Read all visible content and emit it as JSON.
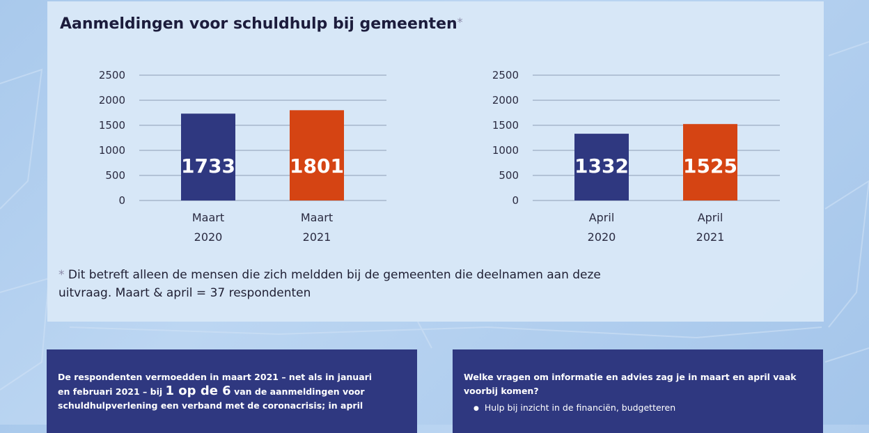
{
  "title": "Aanmeldingen voor schuldhulp bij gemeenten",
  "title_marker": "*",
  "footnote": {
    "marker": "*",
    "line1": "Dit betreft alleen de mensen die zich meldden bij de gemeenten die deelnamen aan deze",
    "line2": "uitvraag. Maart & april = 37 respondenten"
  },
  "colors": {
    "blue": "#2f3880",
    "orange": "#d54413",
    "axis_text": "#2a2a40",
    "grid": "#8d9db5"
  },
  "chart_data": [
    {
      "type": "bar",
      "categories": [
        [
          "Maart",
          "2020"
        ],
        [
          "Maart",
          "2021"
        ]
      ],
      "values": [
        1733,
        1801
      ],
      "labels": [
        "1733",
        "1801"
      ],
      "yticks": [
        "0",
        "500",
        "1000",
        "1500",
        "2000",
        "2500"
      ],
      "ylim": [
        0,
        2500
      ],
      "grid": true
    },
    {
      "type": "bar",
      "categories": [
        [
          "April",
          "2020"
        ],
        [
          "April",
          "2021"
        ]
      ],
      "values": [
        1332,
        1525
      ],
      "labels": [
        "1332",
        "1525"
      ],
      "yticks": [
        "0",
        "500",
        "1000",
        "1500",
        "2000",
        "2500"
      ],
      "ylim": [
        0,
        2500
      ],
      "grid": true
    }
  ],
  "box_left": {
    "line1": "De respondenten vermoedden in maart 2021 – net als in januari",
    "line2_pre": "en februari 2021 – bij ",
    "line2_big": "1 op de 6",
    "line2_post": " van de aanmeldingen voor",
    "line3": "schuldhulpverlening een verband met de coronacrisis; in april"
  },
  "box_right": {
    "question_line1": "Welke vragen om informatie en advies zag je in maart en april vaak",
    "question_line2": "voorbij komen?",
    "items": [
      "Hulp bij inzicht in de financiën, budgetteren"
    ]
  }
}
